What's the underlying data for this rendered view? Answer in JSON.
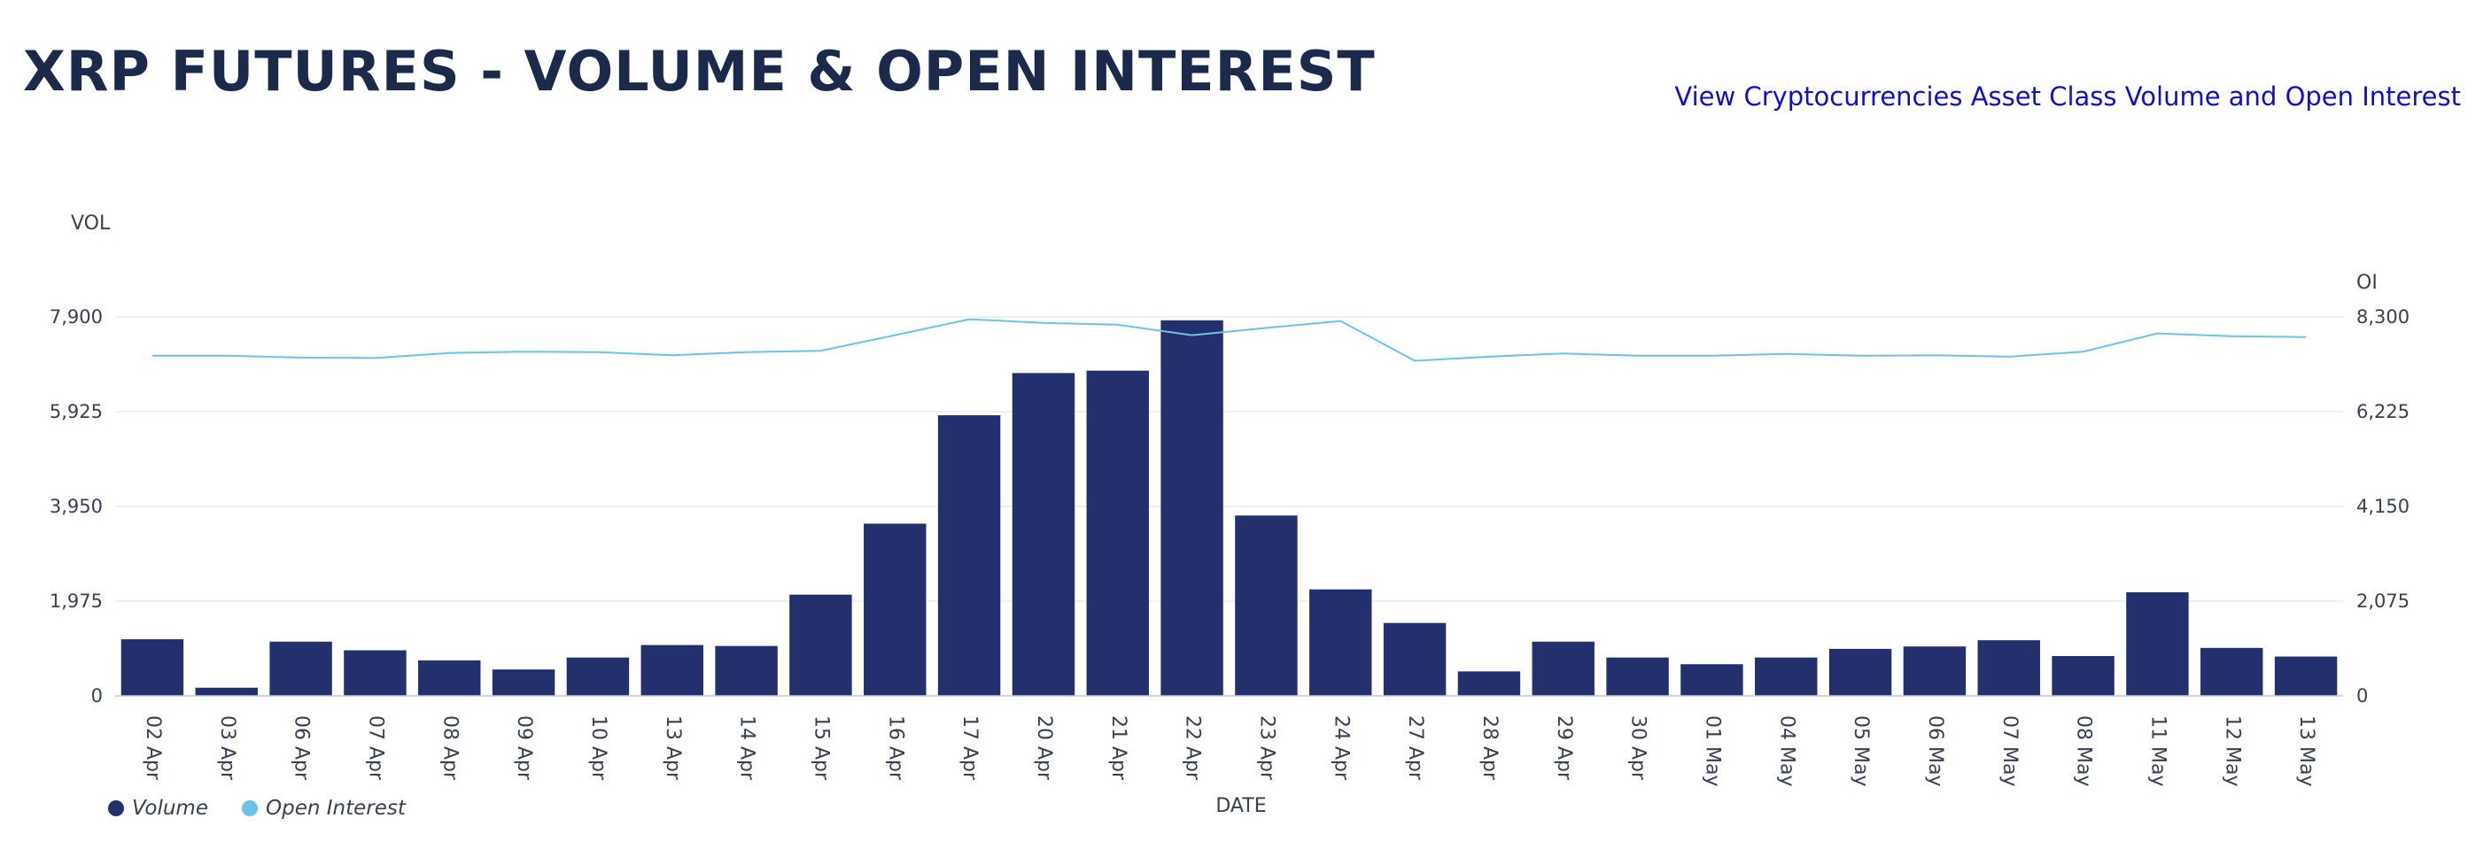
{
  "header": {
    "title": "XRP FUTURES - VOLUME & OPEN INTEREST",
    "link_text": "View Cryptocurrencies Asset Class Volume and Open Interest"
  },
  "colors": {
    "volume_bar": "#24306e",
    "open_interest_line": "#6cc3ea",
    "gridline": "#ececec"
  },
  "chart_data": {
    "type": "bar",
    "title": "XRP FUTURES - VOLUME & OPEN INTEREST",
    "xlabel": "DATE",
    "ylabel": "VOL",
    "y2label": "OI",
    "ylim": [
      0,
      7900
    ],
    "y2lim": [
      0,
      8300
    ],
    "yticks": [
      "0",
      "1,975",
      "3,950",
      "5,925",
      "7,900"
    ],
    "y2ticks": [
      "0",
      "2,075",
      "4,150",
      "6,225",
      "8,300"
    ],
    "grid": true,
    "legend_position": "bottom-left",
    "categories": [
      "02 Apr",
      "03 Apr",
      "06 Apr",
      "07 Apr",
      "08 Apr",
      "09 Apr",
      "10 Apr",
      "13 Apr",
      "14 Apr",
      "15 Apr",
      "16 Apr",
      "17 Apr",
      "20 Apr",
      "21 Apr",
      "22 Apr",
      "23 Apr",
      "24 Apr",
      "27 Apr",
      "28 Apr",
      "29 Apr",
      "30 Apr",
      "01 May",
      "04 May",
      "05 May",
      "06 May",
      "07 May",
      "08 May",
      "11 May",
      "12 May",
      "13 May"
    ],
    "series": [
      {
        "name": "Volume",
        "type": "bar",
        "axis": "left",
        "values": [
          1180,
          170,
          1130,
          950,
          740,
          550,
          800,
          1060,
          1040,
          2110,
          3590,
          5850,
          6730,
          6780,
          7830,
          3760,
          2220,
          1520,
          510,
          1130,
          800,
          660,
          800,
          980,
          1030,
          1160,
          830,
          2160,
          1000,
          820
        ]
      },
      {
        "name": "Open Interest",
        "type": "line",
        "axis": "right",
        "values": [
          7450,
          7450,
          7410,
          7400,
          7510,
          7540,
          7530,
          7460,
          7530,
          7560,
          7900,
          8250,
          8170,
          8130,
          7900,
          8060,
          8210,
          7340,
          7430,
          7500,
          7450,
          7450,
          7490,
          7450,
          7460,
          7430,
          7540,
          7940,
          7880,
          7860
        ]
      }
    ]
  }
}
